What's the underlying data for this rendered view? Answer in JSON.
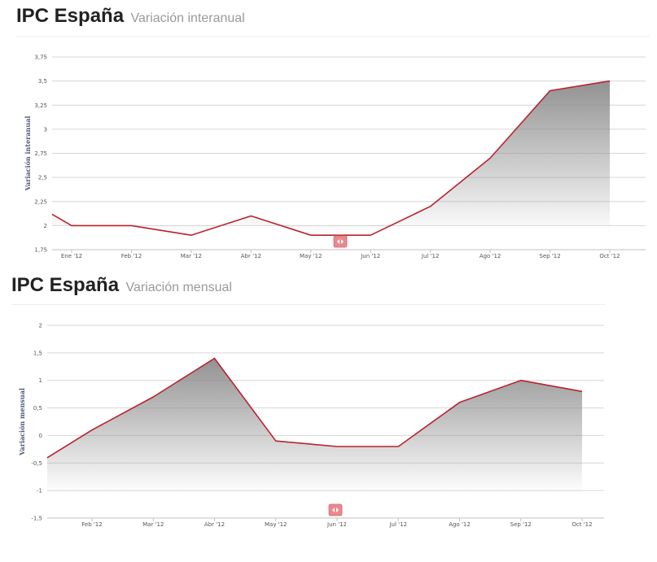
{
  "charts": [
    {
      "title": "IPC España",
      "subtitle": "Variación interanual",
      "chart_data": {
        "type": "area",
        "title": "IPC España",
        "subtitle": "Variación interanual",
        "ylabel": "Variación interanual",
        "xlabel": "",
        "ylim": [
          1.75,
          3.75
        ],
        "ytick_values": [
          1.75,
          2,
          2.25,
          2.5,
          2.75,
          3,
          3.25,
          3.5,
          3.75
        ],
        "ytick_labels": [
          "1,75",
          "2",
          "2,25",
          "2,5",
          "2,75",
          "3",
          "3,25",
          "3,5",
          "3,75"
        ],
        "categories": [
          "Ene '12",
          "Feb '12",
          "Mar '12",
          "Abr '12",
          "May '12",
          "Jun '12",
          "Jul '12",
          "Ago '12",
          "Sep '12",
          "Oct '12"
        ],
        "series": [
          {
            "values": [
              2.0,
              2.0,
              1.9,
              2.1,
              1.9,
              1.9,
              2.2,
              2.7,
              3.4,
              3.5
            ]
          }
        ],
        "grid": true,
        "line_color": "#b8232f",
        "fill_color": "#8c8c8c"
      }
    },
    {
      "title": "IPC España",
      "subtitle": "Variación mensual",
      "chart_data": {
        "type": "area",
        "title": "IPC España",
        "subtitle": "Variación mensual",
        "ylabel": "Variación mensual",
        "xlabel": "",
        "ylim": [
          -1.5,
          2
        ],
        "ytick_values": [
          -1.5,
          -1,
          -0.5,
          0,
          0.5,
          1,
          1.5,
          2
        ],
        "ytick_labels": [
          "-1,5",
          "-1",
          "-0,5",
          "0",
          "0,5",
          "1",
          "1,5",
          "2"
        ],
        "categories": [
          "Feb '12",
          "Mar '12",
          "Abr '12",
          "May '12",
          "Jun '12",
          "Jul '12",
          "Ago '12",
          "Sep '12",
          "Oct '12"
        ],
        "series": [
          {
            "values": [
              0.1,
              0.7,
              1.4,
              -0.1,
              -0.2,
              -0.2,
              0.6,
              1.0,
              0.8
            ]
          }
        ],
        "grid": true,
        "line_color": "#b8232f",
        "fill_color": "#8c8c8c"
      }
    }
  ],
  "nav_icon": "arrows-left-right-icon",
  "nav_color": "#e8898e"
}
